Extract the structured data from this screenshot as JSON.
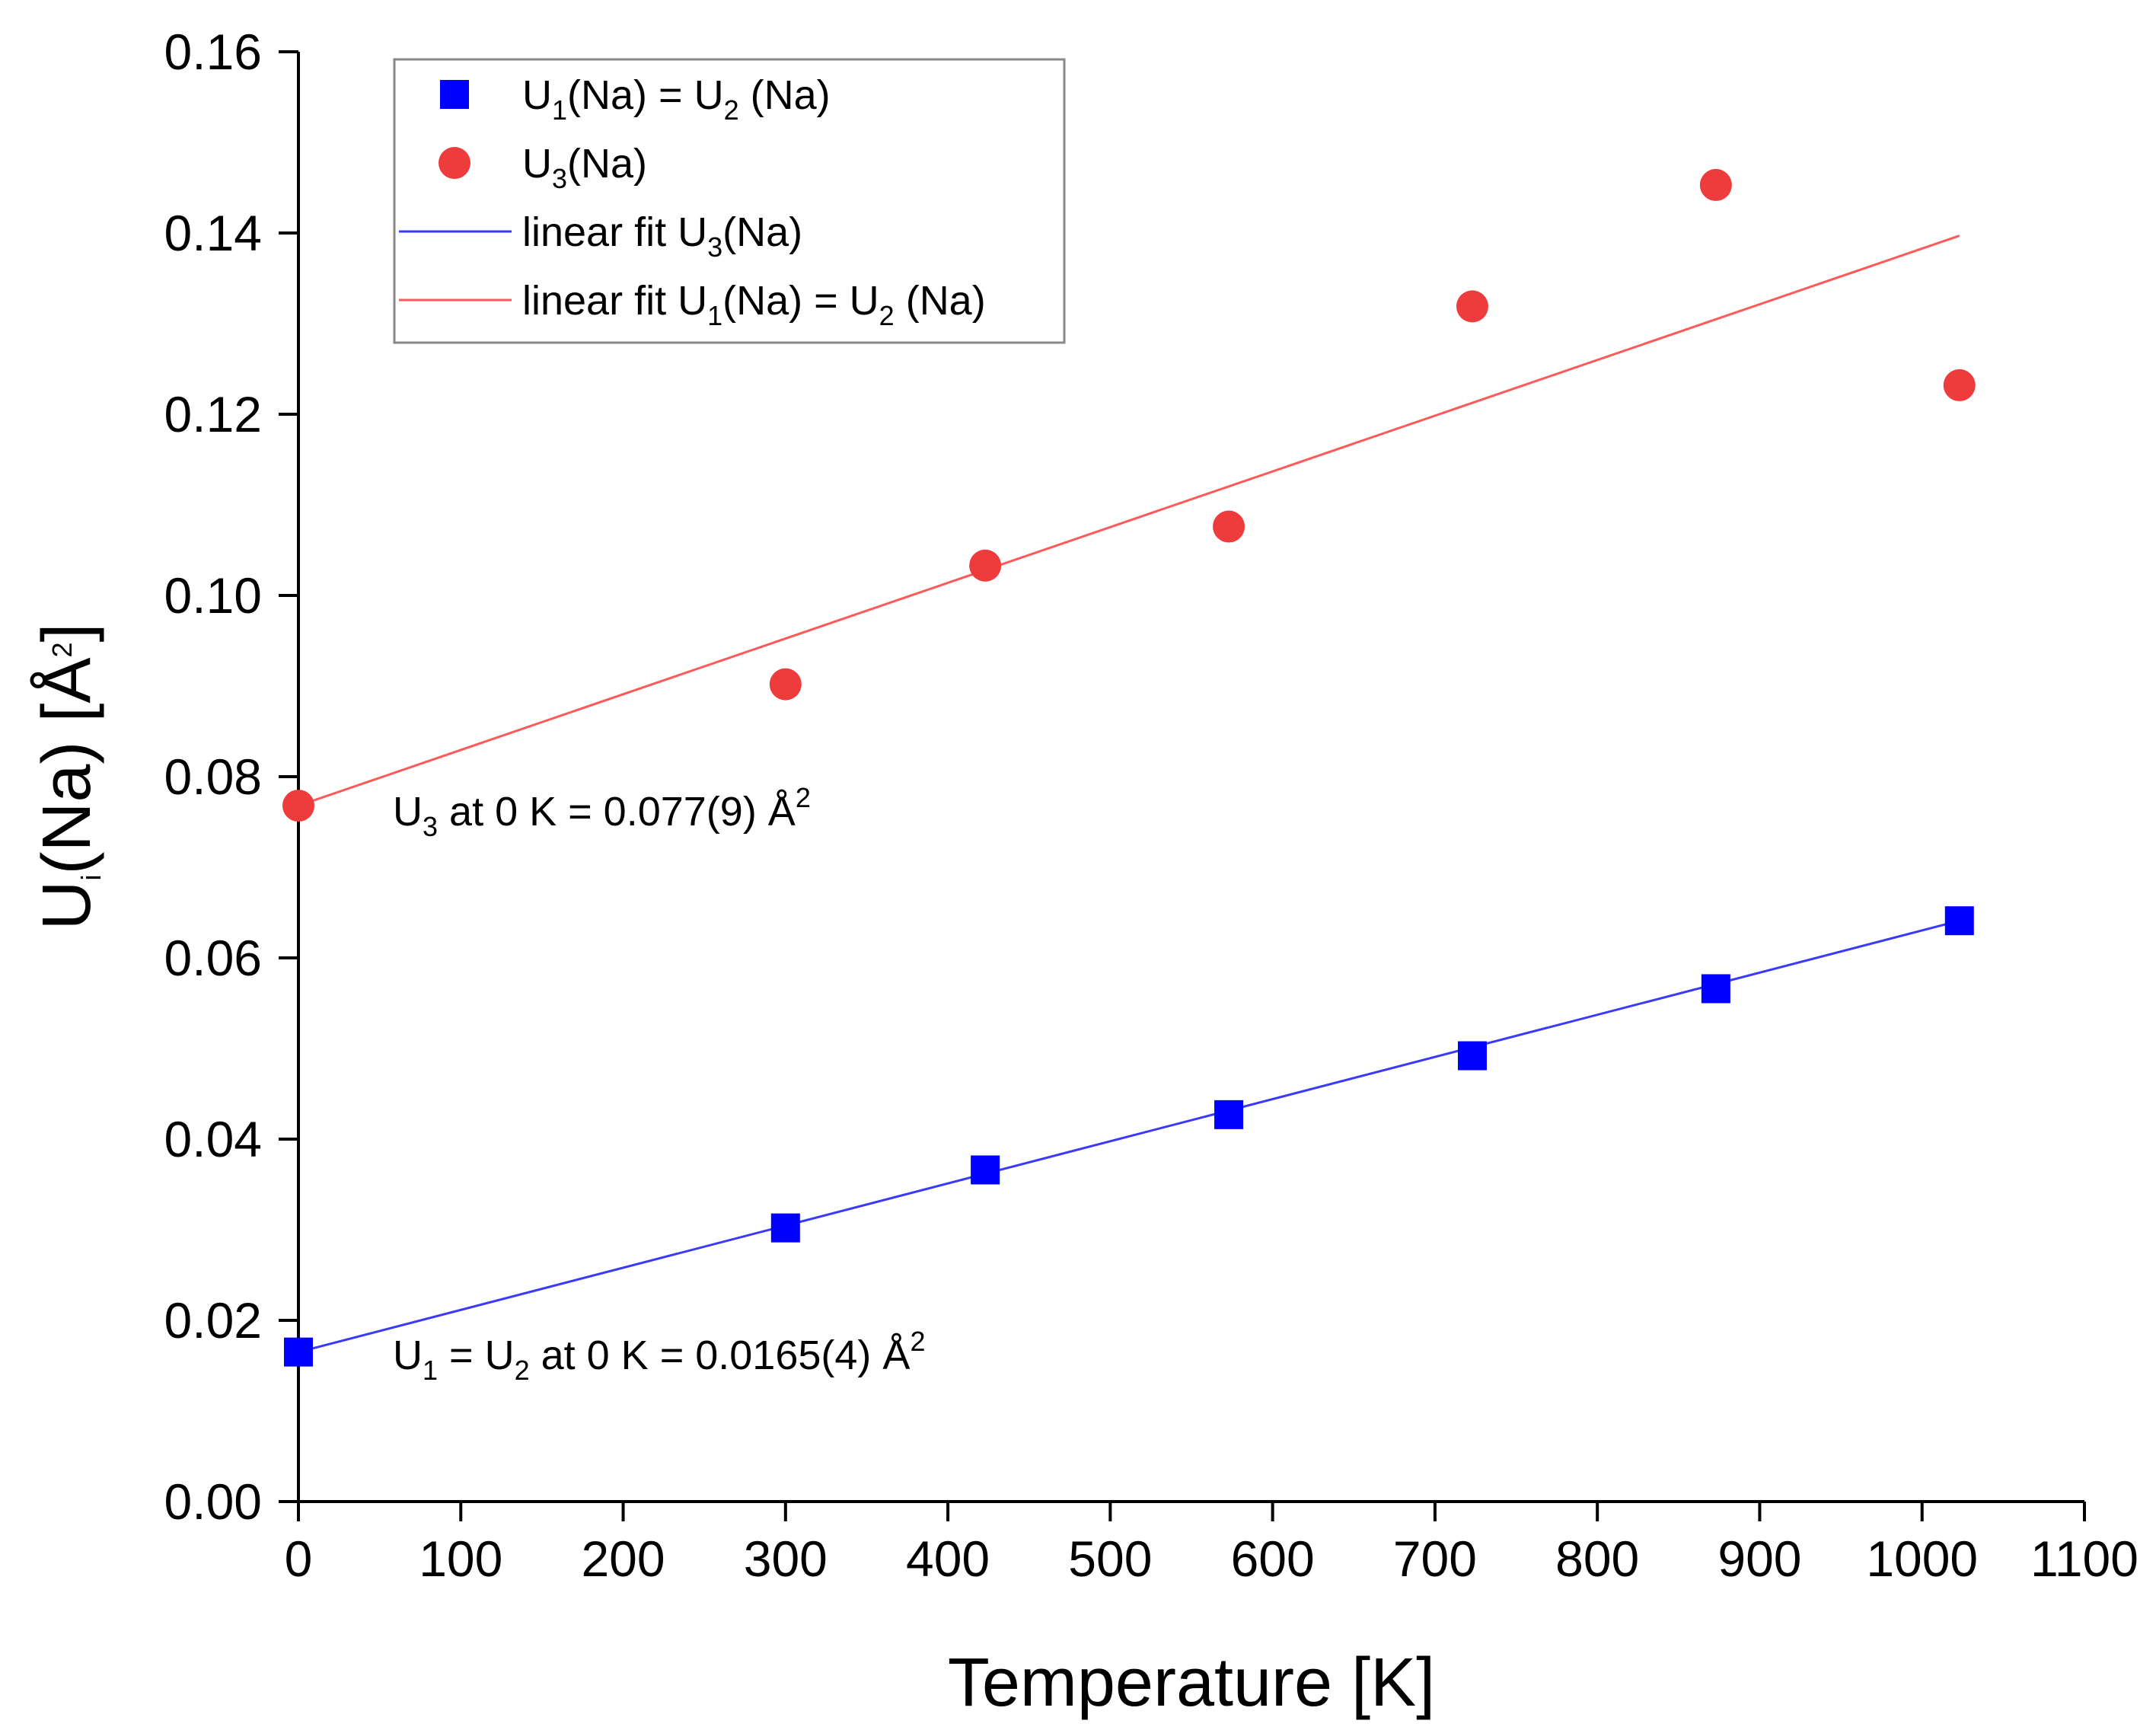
{
  "chart_data": {
    "type": "scatter",
    "title": "",
    "xlabel": "Temperature [K]",
    "ylabel": {
      "base": "U",
      "sub": "i",
      "rest": "(Na) [Å",
      "sup": "2",
      "end": "]"
    },
    "xlim": [
      0,
      1100
    ],
    "ylim": [
      0.0,
      0.16
    ],
    "xticks": [
      0,
      100,
      200,
      300,
      400,
      500,
      600,
      700,
      800,
      900,
      1000,
      1100
    ],
    "xtick_labels": [
      "0",
      "100",
      "200",
      "300",
      "400",
      "500",
      "600",
      "700",
      "800",
      "900",
      "1000",
      "1100"
    ],
    "yticks": [
      0.0,
      0.02,
      0.04,
      0.06,
      0.08,
      0.1,
      0.12,
      0.14,
      0.16
    ],
    "ytick_labels": [
      "0.00",
      "0.02",
      "0.04",
      "0.06",
      "0.08",
      "0.10",
      "0.12",
      "0.14",
      "0.16"
    ],
    "grid": false,
    "legend_position": "top-left",
    "series": [
      {
        "name": "U1(Na) = U2 (Na)",
        "marker": "square",
        "color": "#0000ff",
        "x": [
          0,
          300,
          423,
          573,
          723,
          873,
          1023
        ],
        "y": [
          0.0165,
          0.0302,
          0.0366,
          0.0427,
          0.0492,
          0.0566,
          0.0641
        ]
      },
      {
        "name": "U3(Na)",
        "marker": "circle",
        "color": "#ee3b3b",
        "x": [
          0,
          300,
          423,
          573,
          723,
          873,
          1023
        ],
        "y": [
          0.0768,
          0.0902,
          0.1033,
          0.1076,
          0.1319,
          0.1453,
          0.1232
        ]
      }
    ],
    "fits": [
      {
        "name": "linear fit U3(Na)",
        "color": "#3a3aff",
        "x": [
          0,
          1023
        ],
        "y": [
          0.0165,
          0.0641
        ]
      },
      {
        "name": "linear fit U1(Na) = U2 (Na)",
        "color": "#ff5a5a",
        "x": [
          0,
          1023
        ],
        "y": [
          0.0768,
          0.1397
        ]
      }
    ],
    "legend": [
      {
        "kind": "square",
        "color": "#0000ff",
        "parts": [
          [
            "U",
            ""
          ],
          [
            "1",
            "sub"
          ],
          [
            "(Na) = U",
            ""
          ],
          [
            "2",
            "sub"
          ],
          [
            " (Na)",
            ""
          ]
        ]
      },
      {
        "kind": "circle",
        "color": "#ee3b3b",
        "parts": [
          [
            "U",
            ""
          ],
          [
            "3",
            "sub"
          ],
          [
            "(Na)",
            ""
          ]
        ]
      },
      {
        "kind": "line",
        "color": "#3a3aff",
        "parts": [
          [
            "linear fit U",
            ""
          ],
          [
            "3",
            "sub"
          ],
          [
            "(Na)",
            ""
          ]
        ]
      },
      {
        "kind": "line",
        "color": "#ff5a5a",
        "parts": [
          [
            "linear fit U",
            ""
          ],
          [
            "1",
            "sub"
          ],
          [
            "(Na) = U",
            ""
          ],
          [
            "2",
            "sub"
          ],
          [
            " (Na)",
            ""
          ]
        ]
      }
    ],
    "annotations": [
      {
        "parts": [
          [
            "U",
            ""
          ],
          [
            "3",
            "sub"
          ],
          [
            " at 0 K = 0.077(9) Å",
            ""
          ],
          [
            "2",
            "sup"
          ]
        ]
      },
      {
        "parts": [
          [
            "U",
            ""
          ],
          [
            "1",
            "sub"
          ],
          [
            " = U",
            ""
          ],
          [
            "2",
            "sub"
          ],
          [
            " at 0 K = 0.0165(4) Å",
            ""
          ],
          [
            "2",
            "sup"
          ]
        ]
      }
    ]
  }
}
